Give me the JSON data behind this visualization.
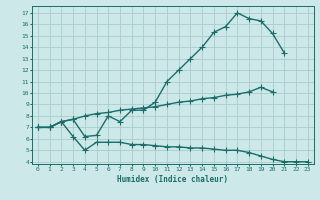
{
  "xlabel": "Humidex (Indice chaleur)",
  "ylabel": "",
  "bg_color": "#cde8e8",
  "grid_color": "#b8d8d8",
  "line_color": "#1a6e6a",
  "xlim": [
    -0.5,
    23.5
  ],
  "ylim": [
    3.8,
    17.6
  ],
  "xticks": [
    0,
    1,
    2,
    3,
    4,
    5,
    6,
    7,
    8,
    9,
    10,
    11,
    12,
    13,
    14,
    15,
    16,
    17,
    18,
    19,
    20,
    21,
    22,
    23
  ],
  "yticks": [
    4,
    5,
    6,
    7,
    8,
    9,
    10,
    11,
    12,
    13,
    14,
    15,
    16,
    17
  ],
  "line1_x": [
    0,
    1,
    2,
    3,
    4,
    5,
    6,
    7,
    8,
    9,
    10,
    11,
    12,
    13,
    14,
    15,
    16,
    17,
    18,
    19,
    20,
    21
  ],
  "line1_y": [
    7.0,
    7.0,
    7.5,
    7.7,
    6.2,
    6.3,
    8.0,
    7.5,
    8.5,
    8.5,
    9.2,
    11.0,
    12.0,
    13.0,
    14.0,
    15.3,
    15.8,
    17.0,
    16.5,
    16.3,
    15.2,
    13.5
  ],
  "line2_x": [
    0,
    1,
    2,
    3,
    4,
    5,
    6,
    7,
    8,
    9,
    10,
    11,
    12,
    13,
    14,
    15,
    16,
    17,
    18,
    19,
    20
  ],
  "line2_y": [
    7.0,
    7.0,
    7.5,
    7.7,
    8.0,
    8.2,
    8.3,
    8.5,
    8.6,
    8.7,
    8.8,
    9.0,
    9.2,
    9.3,
    9.5,
    9.6,
    9.8,
    9.9,
    10.1,
    10.5,
    10.1
  ],
  "line3_x": [
    0,
    1,
    2,
    3,
    4,
    5,
    6,
    7,
    8,
    9,
    10,
    11,
    12,
    13,
    14,
    15,
    16,
    17,
    18,
    19,
    20,
    21,
    22,
    23
  ],
  "line3_y": [
    7.0,
    7.0,
    7.5,
    6.2,
    5.0,
    5.7,
    5.7,
    5.7,
    5.5,
    5.5,
    5.4,
    5.3,
    5.3,
    5.2,
    5.2,
    5.1,
    5.0,
    5.0,
    4.8,
    4.5,
    4.2,
    4.0,
    4.0,
    4.0
  ],
  "marker_size": 2.5,
  "line_width": 1.0,
  "font_family": "monospace"
}
